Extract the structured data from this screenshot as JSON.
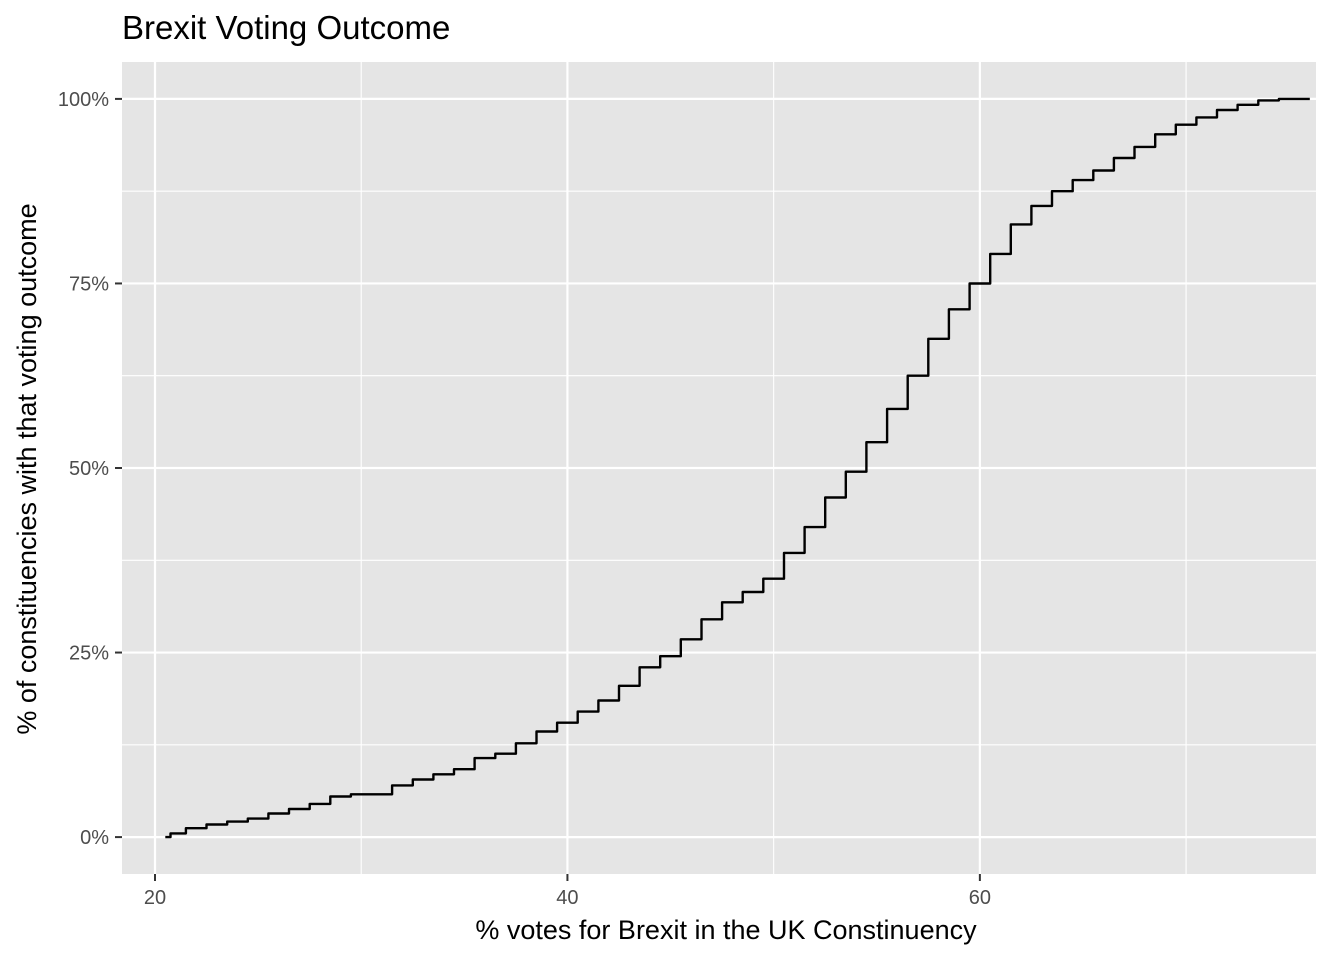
{
  "chart_data": {
    "type": "line",
    "title": "Brexit Voting Outcome",
    "xlabel": "% votes for Brexit in the UK Constinuency",
    "ylabel": "% of constituencies with that voting outcome",
    "xlim": [
      18.4,
      76.3
    ],
    "ylim": [
      -0.05,
      1.05
    ],
    "x_ticks": [
      20,
      40,
      60
    ],
    "x_tick_labels": [
      "20",
      "40",
      "60"
    ],
    "x_minor_ticks": [
      30,
      50,
      70
    ],
    "y_ticks": [
      0,
      0.25,
      0.5,
      0.75,
      1.0
    ],
    "y_tick_labels": [
      "0%",
      "25%",
      "50%",
      "75%",
      "100%"
    ],
    "y_minor_ticks": [
      0.125,
      0.375,
      0.625,
      0.875
    ],
    "grid": true,
    "legend": "none",
    "colors": {
      "panel": "#e5e5e5",
      "grid": "#ffffff",
      "line": "#000000"
    },
    "series": [
      {
        "x": [
          20.5,
          21.0,
          22.0,
          23.0,
          24.0,
          25.0,
          26.0,
          27.0,
          28.0,
          29.0,
          30.0,
          31.0,
          32.0,
          33.0,
          34.0,
          35.0,
          36.0,
          37.0,
          38.0,
          39.0,
          40.0,
          41.0,
          42.0,
          43.0,
          44.0,
          45.0,
          46.0,
          47.0,
          48.0,
          49.0,
          50.0,
          51.0,
          52.0,
          53.0,
          54.0,
          55.0,
          56.0,
          57.0,
          58.0,
          59.0,
          60.0,
          61.0,
          62.0,
          63.0,
          64.0,
          65.0,
          66.0,
          67.0,
          68.0,
          69.0,
          70.0,
          71.0,
          72.0,
          73.0,
          74.0,
          75.0,
          76.0
        ],
        "y": [
          0.0,
          0.005,
          0.012,
          0.017,
          0.021,
          0.025,
          0.032,
          0.038,
          0.045,
          0.055,
          0.058,
          0.058,
          0.07,
          0.078,
          0.085,
          0.092,
          0.107,
          0.113,
          0.127,
          0.143,
          0.155,
          0.17,
          0.185,
          0.205,
          0.23,
          0.245,
          0.268,
          0.295,
          0.318,
          0.332,
          0.35,
          0.385,
          0.42,
          0.46,
          0.495,
          0.535,
          0.58,
          0.625,
          0.675,
          0.715,
          0.75,
          0.79,
          0.83,
          0.855,
          0.875,
          0.89,
          0.903,
          0.92,
          0.935,
          0.952,
          0.965,
          0.975,
          0.985,
          0.992,
          0.998,
          1.0,
          1.0
        ]
      }
    ]
  }
}
